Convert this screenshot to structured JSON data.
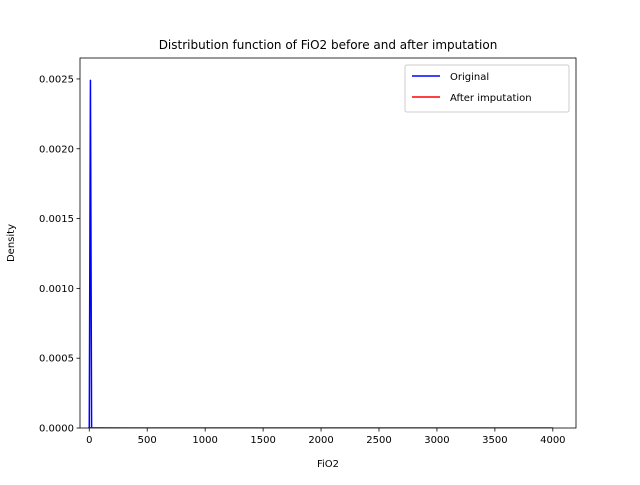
{
  "chart_data": {
    "type": "line",
    "title": "Distribution function of FiO2 before and after imputation",
    "xlabel": "FiO2",
    "ylabel": "Density",
    "xlim": [
      -80,
      4200
    ],
    "ylim": [
      0,
      0.00265
    ],
    "x_ticks": [
      0,
      500,
      1000,
      1500,
      2000,
      2500,
      3000,
      3500,
      4000
    ],
    "x_tick_labels": [
      "0",
      "500",
      "1000",
      "1500",
      "2000",
      "2500",
      "3000",
      "3500",
      "4000"
    ],
    "y_ticks": [
      0,
      0.0005,
      0.001,
      0.0015,
      0.002,
      0.0025
    ],
    "y_tick_labels": [
      "0.0000",
      "0.0005",
      "0.0010",
      "0.0015",
      "0.0020",
      "0.0025"
    ],
    "grid": false,
    "legend_position": "top-right",
    "colors": {
      "Original": "#0000ff",
      "After imputation": "#ff0000"
    },
    "series": [
      {
        "name": "Original",
        "x": [
          -10,
          0,
          10,
          20,
          30
        ],
        "y": [
          0,
          0,
          0.00249,
          0,
          0
        ]
      },
      {
        "name": "After imputation",
        "x": [
          -10,
          0,
          500,
          1000,
          1500,
          2000,
          2500,
          3000,
          3500,
          4000
        ],
        "y": [
          0,
          1e-06,
          0,
          0,
          0,
          0,
          0,
          0,
          0,
          0
        ]
      }
    ]
  }
}
